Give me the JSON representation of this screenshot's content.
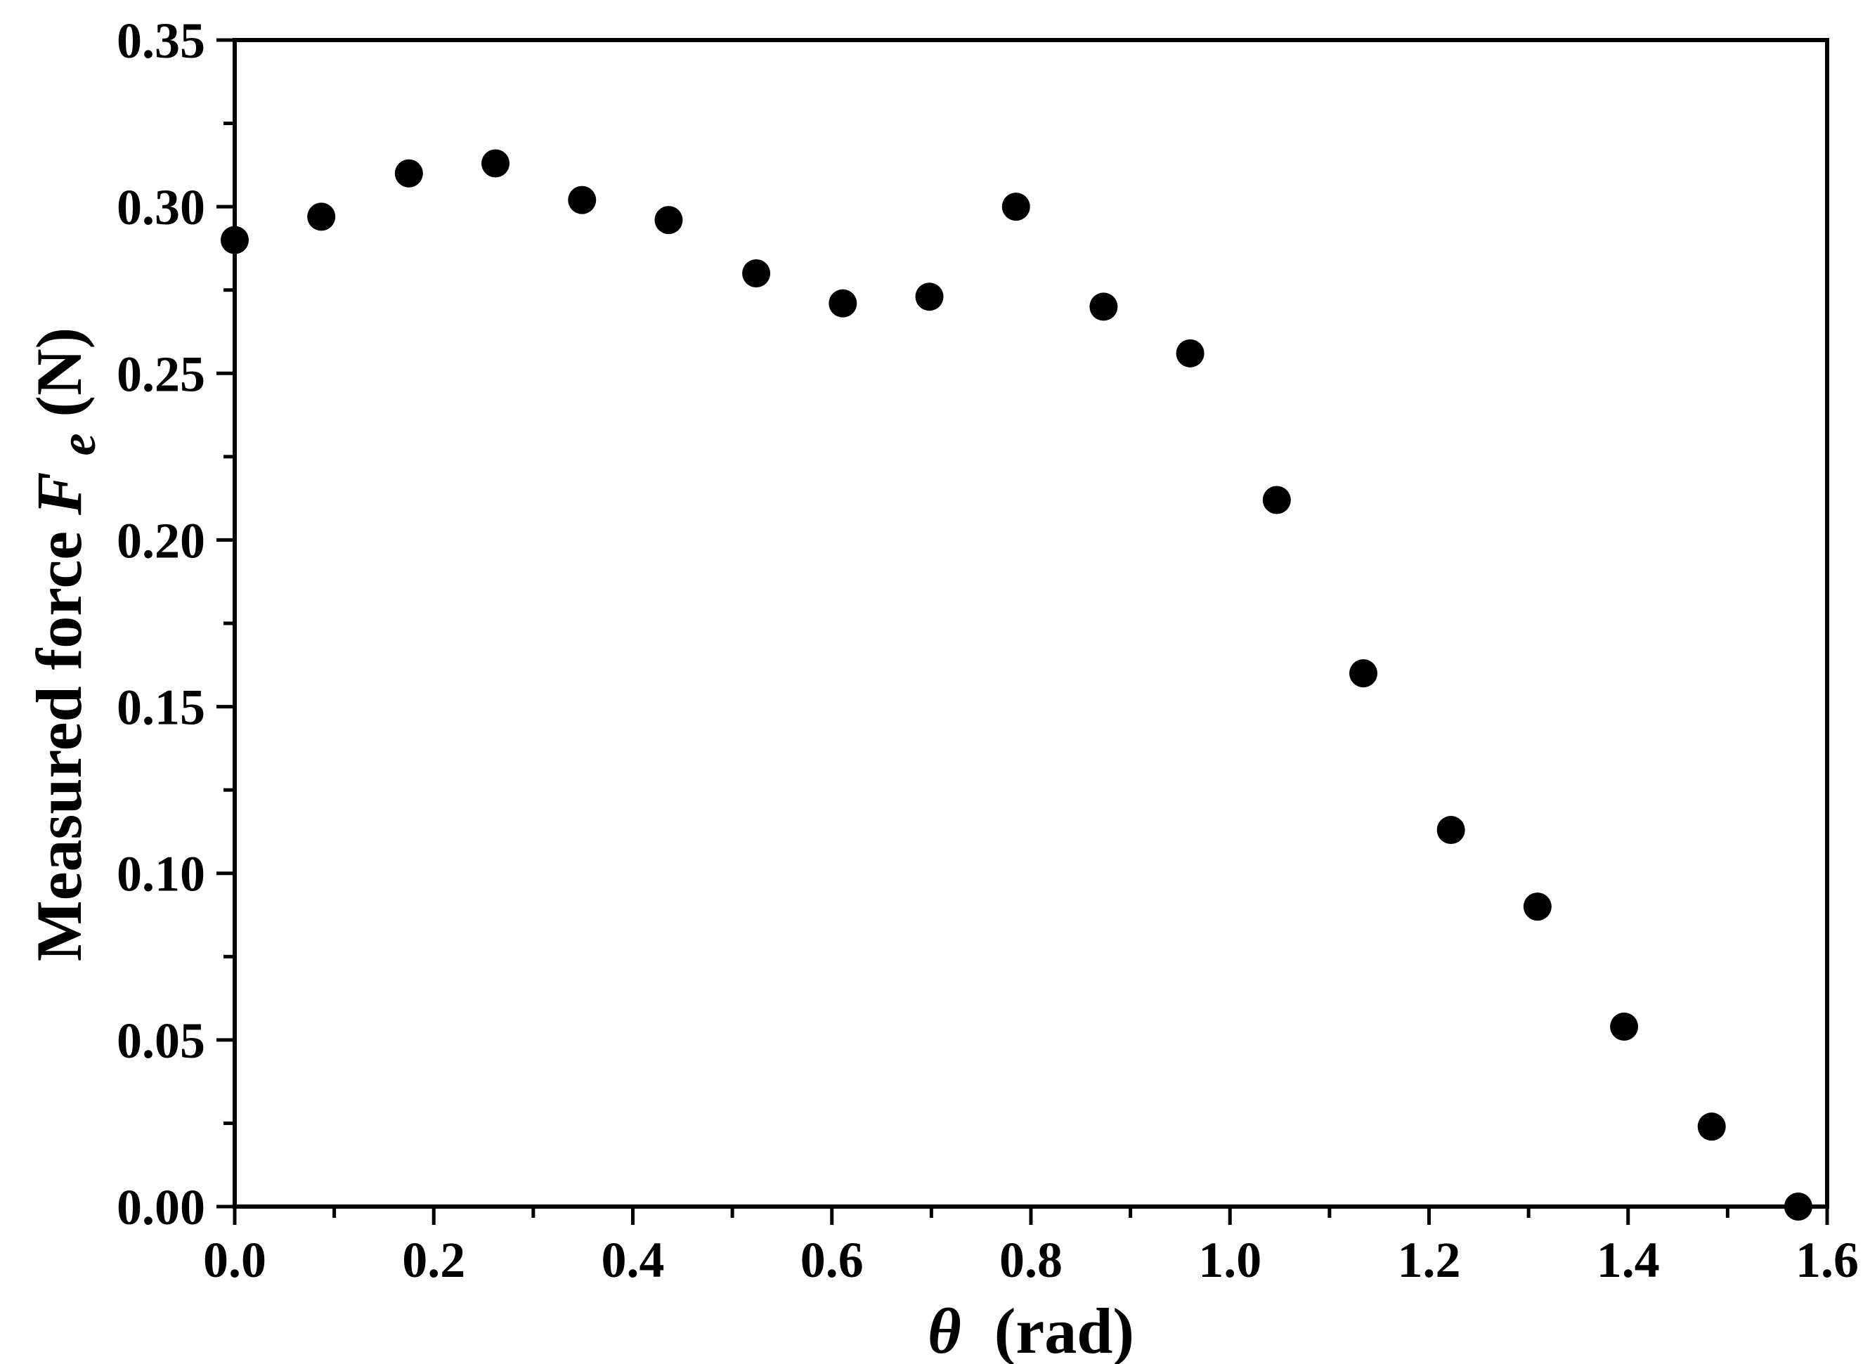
{
  "chart_data": {
    "type": "scatter",
    "title": "",
    "xlabel": {
      "symbol": "θ",
      "unit": "(rad)"
    },
    "ylabel": {
      "prefix": "Measured force ",
      "symbol": "F",
      "subscript": "e",
      "unit": " (N)"
    },
    "xlim": [
      0.0,
      1.6
    ],
    "ylim": [
      0.0,
      0.35
    ],
    "x_ticks": [
      "0.0",
      "0.2",
      "0.4",
      "0.6",
      "0.8",
      "1.0",
      "1.2",
      "1.4",
      "1.6"
    ],
    "y_ticks": [
      "0.00",
      "0.05",
      "0.10",
      "0.15",
      "0.20",
      "0.25",
      "0.30",
      "0.35"
    ],
    "x_minor_step": 0.1,
    "y_minor_step": 0.025,
    "grid": false,
    "legend": "none",
    "marker_color": "#000000",
    "series": [
      {
        "x": [
          0.0,
          0.087,
          0.175,
          0.262,
          0.349,
          0.436,
          0.524,
          0.611,
          0.698,
          0.785,
          0.873,
          0.96,
          1.047,
          1.134,
          1.222,
          1.309,
          1.396,
          1.484,
          1.571
        ],
        "y": [
          0.29,
          0.297,
          0.31,
          0.313,
          0.302,
          0.296,
          0.28,
          0.271,
          0.273,
          0.3,
          0.27,
          0.256,
          0.212,
          0.16,
          0.113,
          0.09,
          0.054,
          0.024,
          0.0
        ]
      }
    ]
  }
}
